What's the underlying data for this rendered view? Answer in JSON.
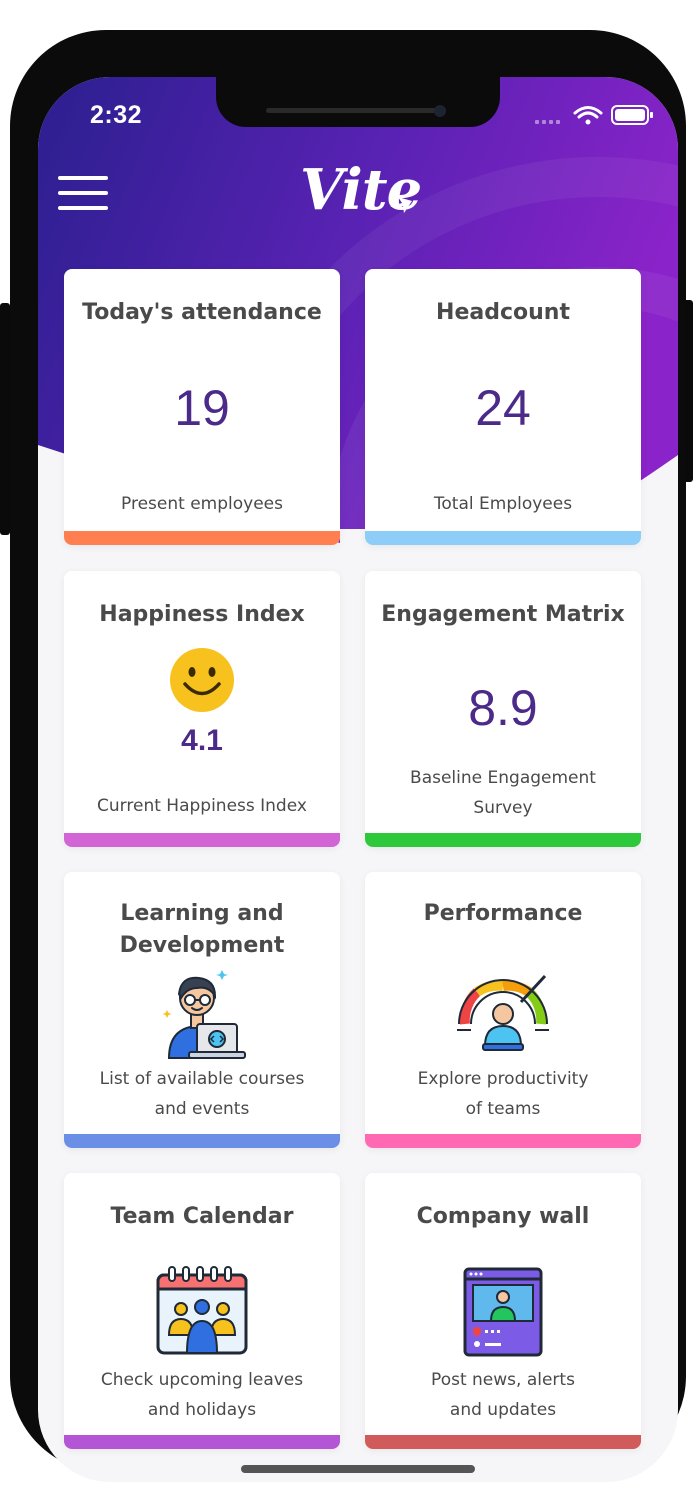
{
  "status_bar": {
    "time": "2:32"
  },
  "header": {
    "logo": "Vite"
  },
  "cards": {
    "attendance": {
      "title": "Today's attendance",
      "value": "19",
      "subtitle": "Present employees",
      "accent": "#ff7f50"
    },
    "headcount": {
      "title": "Headcount",
      "value": "24",
      "subtitle": "Total Employees",
      "accent": "#8ecdf7"
    },
    "happiness": {
      "title": "Happiness Index",
      "value": "4.1",
      "subtitle": "Current Happiness Index",
      "accent": "#d264d6",
      "icon": "smiley-icon"
    },
    "engagement": {
      "title": "Engagement Matrix",
      "value": "8.9",
      "subtitle_line1": "Baseline Engagement",
      "subtitle_line2": "Survey",
      "accent": "#2ec93a"
    },
    "learning": {
      "title_line1": "Learning and",
      "title_line2": "Development",
      "subtitle_line1": "List of available courses",
      "subtitle_line2": "and events",
      "accent": "#6b8fe6",
      "icon": "developer-laptop-icon"
    },
    "performance": {
      "title": "Performance",
      "subtitle_line1": "Explore productivity",
      "subtitle_line2": "of teams",
      "accent": "#ff69b4",
      "icon": "performance-gauge-icon"
    },
    "calendar": {
      "title": "Team Calendar",
      "subtitle_line1": "Check upcoming leaves",
      "subtitle_line2": "and holidays",
      "accent": "#b455d6",
      "icon": "team-calendar-icon"
    },
    "wall": {
      "title": "Company wall",
      "subtitle_line1": "Post news, alerts",
      "subtitle_line2": "and updates",
      "accent": "#d15a5a",
      "icon": "company-wall-icon"
    }
  },
  "theme": {
    "header_gradient_start": "#2b1f8f",
    "header_gradient_end": "#8a23c9",
    "value_color": "#4b2a8a"
  }
}
